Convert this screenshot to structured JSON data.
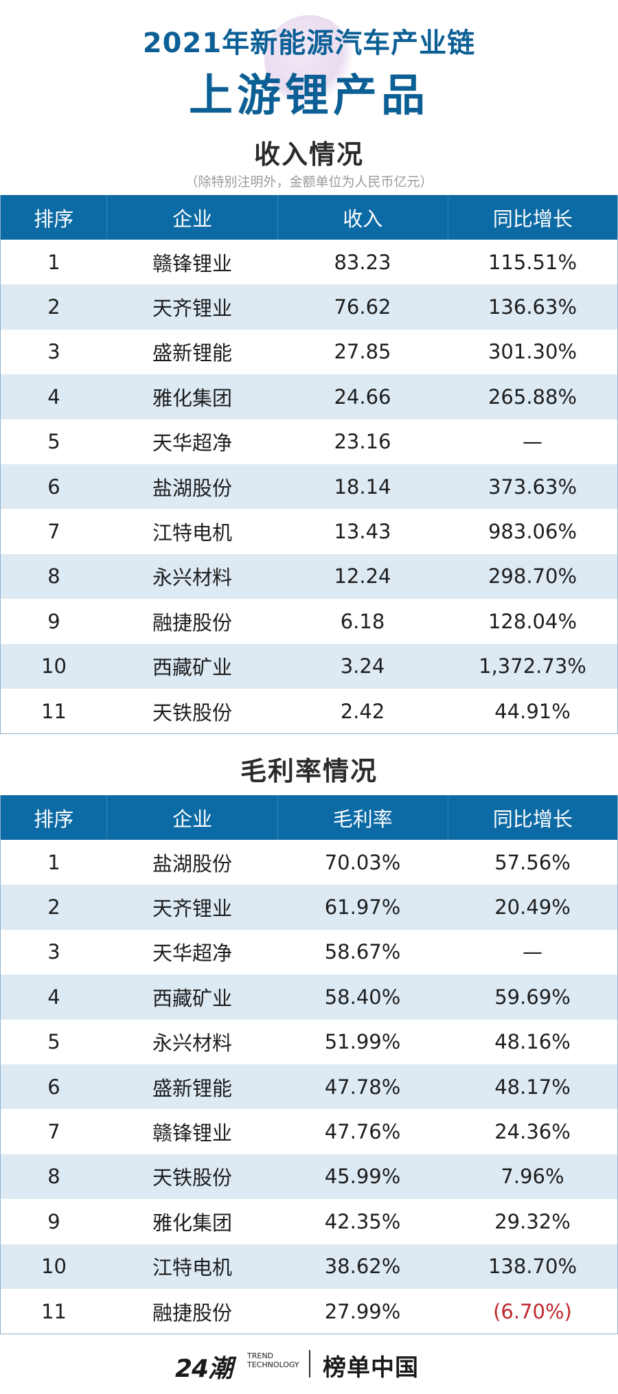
{
  "header": {
    "line1": "2021年新能源汽车产业链",
    "line2": "上游锂产品"
  },
  "revenue": {
    "title": "收入情况",
    "note": "（除特别注明外，金额单位为人民币亿元）",
    "columns": [
      "排序",
      "企业",
      "收入",
      "同比增长"
    ],
    "rows": [
      {
        "rank": "1",
        "company": "赣锋锂业",
        "value": "83.23",
        "growth": "115.51%"
      },
      {
        "rank": "2",
        "company": "天齐锂业",
        "value": "76.62",
        "growth": "136.63%"
      },
      {
        "rank": "3",
        "company": "盛新锂能",
        "value": "27.85",
        "growth": "301.30%"
      },
      {
        "rank": "4",
        "company": "雅化集团",
        "value": "24.66",
        "growth": "265.88%"
      },
      {
        "rank": "5",
        "company": "天华超净",
        "value": "23.16",
        "growth": "—"
      },
      {
        "rank": "6",
        "company": "盐湖股份",
        "value": "18.14",
        "growth": "373.63%"
      },
      {
        "rank": "7",
        "company": "江特电机",
        "value": "13.43",
        "growth": "983.06%"
      },
      {
        "rank": "8",
        "company": "永兴材料",
        "value": "12.24",
        "growth": "298.70%"
      },
      {
        "rank": "9",
        "company": "融捷股份",
        "value": "6.18",
        "growth": "128.04%"
      },
      {
        "rank": "10",
        "company": "西藏矿业",
        "value": "3.24",
        "growth": "1,372.73%"
      },
      {
        "rank": "11",
        "company": "天铁股份",
        "value": "2.42",
        "growth": "44.91%"
      }
    ]
  },
  "margin": {
    "title": "毛利率情况",
    "columns": [
      "排序",
      "企业",
      "毛利率",
      "同比增长"
    ],
    "rows": [
      {
        "rank": "1",
        "company": "盐湖股份",
        "value": "70.03%",
        "growth": "57.56%"
      },
      {
        "rank": "2",
        "company": "天齐锂业",
        "value": "61.97%",
        "growth": "20.49%"
      },
      {
        "rank": "3",
        "company": "天华超净",
        "value": "58.67%",
        "growth": "—"
      },
      {
        "rank": "4",
        "company": "西藏矿业",
        "value": "58.40%",
        "growth": "59.69%"
      },
      {
        "rank": "5",
        "company": "永兴材料",
        "value": "51.99%",
        "growth": "48.16%"
      },
      {
        "rank": "6",
        "company": "盛新锂能",
        "value": "47.78%",
        "growth": "48.17%"
      },
      {
        "rank": "7",
        "company": "赣锋锂业",
        "value": "47.76%",
        "growth": "24.36%"
      },
      {
        "rank": "8",
        "company": "天铁股份",
        "value": "45.99%",
        "growth": "7.96%"
      },
      {
        "rank": "9",
        "company": "雅化集团",
        "value": "42.35%",
        "growth": "29.32%"
      },
      {
        "rank": "10",
        "company": "江特电机",
        "value": "38.62%",
        "growth": "138.70%"
      },
      {
        "rank": "11",
        "company": "融捷股份",
        "value": "27.99%",
        "growth": "(6.70%)",
        "negative": true
      }
    ]
  },
  "footer": {
    "logo_a": "24潮",
    "logo_a_sub1": "TREND",
    "logo_a_sub2": "TECHNOLOGY",
    "logo_b": "榜单中国"
  },
  "colors": {
    "accent": "#0c5f94",
    "header_bg": "#0c6aa5",
    "stripe": "#ddeaf4",
    "negative": "#c2282e"
  }
}
